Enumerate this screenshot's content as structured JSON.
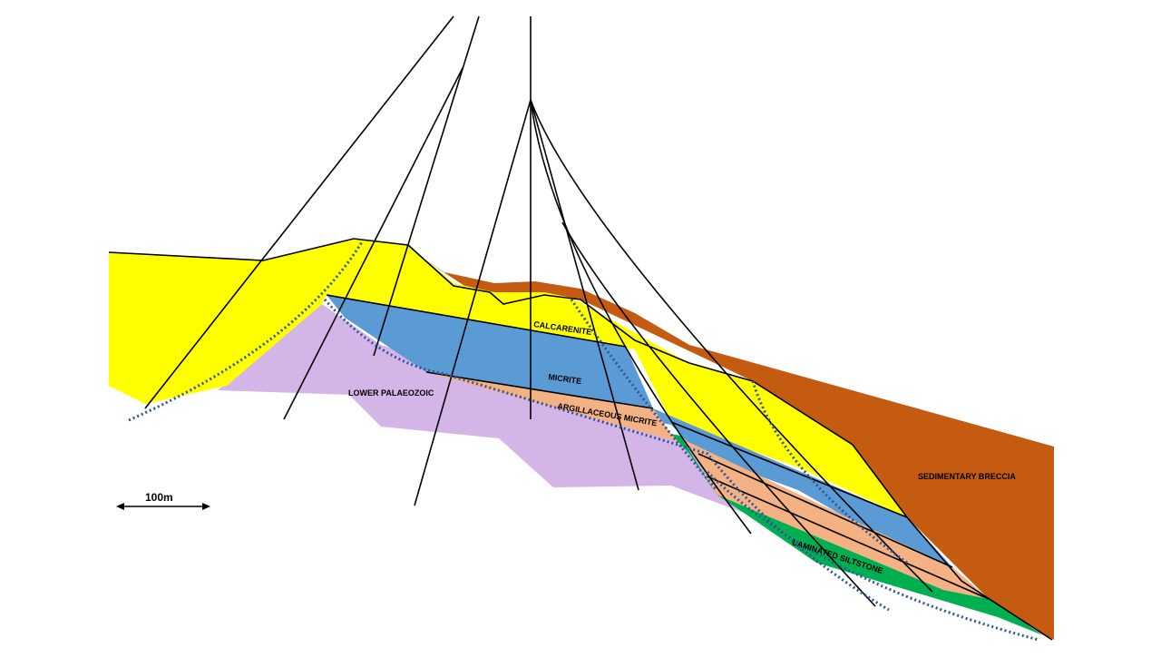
{
  "units": [
    {
      "label": "CALCARENITE"
    },
    {
      "label": "MICRITE"
    },
    {
      "label": "ARGILLACEOUS MICRITE"
    },
    {
      "label": "LOWER PALAEOZOIC"
    },
    {
      "label": "LAMINATED SILTSTONE"
    },
    {
      "label": "SEDIMENTARY BRECCIA"
    }
  ],
  "scale_bar": {
    "label": "100m"
  }
}
